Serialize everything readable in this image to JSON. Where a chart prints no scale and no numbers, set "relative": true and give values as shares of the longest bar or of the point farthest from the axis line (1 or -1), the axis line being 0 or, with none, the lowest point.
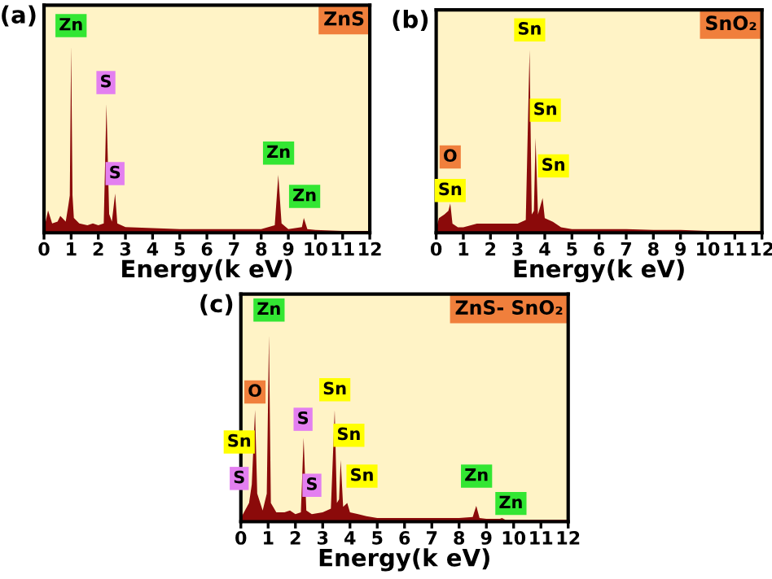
{
  "chart_data": [
    {
      "type": "area",
      "title": "(a)",
      "xlabel": "Energy(k eV)",
      "relative": true,
      "tick_labels": "x",
      "xlim": [
        0,
        12
      ],
      "xticks": [
        0,
        1,
        2,
        3,
        4,
        5,
        6,
        7,
        8,
        9,
        10,
        11,
        12
      ],
      "grid": false,
      "legend": false,
      "x": [
        0,
        0.15,
        0.3,
        0.5,
        0.6,
        0.8,
        0.9,
        0.95,
        1.0,
        1.05,
        1.1,
        1.3,
        1.6,
        1.8,
        2.0,
        2.2,
        2.3,
        2.4,
        2.5,
        2.62,
        2.7,
        3,
        4,
        5,
        6,
        7,
        8,
        8.5,
        8.63,
        8.75,
        9,
        9.5,
        9.57,
        9.7,
        10,
        11,
        12
      ],
      "series": [
        {
          "color": "#8b0a0a",
          "values": [
            0.02,
            0.12,
            0.05,
            0.06,
            0.09,
            0.06,
            0.15,
            0.2,
            1.0,
            0.2,
            0.08,
            0.05,
            0.04,
            0.05,
            0.04,
            0.05,
            0.69,
            0.1,
            0.06,
            0.21,
            0.05,
            0.03,
            0.025,
            0.02,
            0.02,
            0.02,
            0.02,
            0.04,
            0.31,
            0.05,
            0.02,
            0.03,
            0.08,
            0.02,
            0.015,
            0.01,
            0.01
          ]
        }
      ],
      "annotations": [
        "ZnS",
        "Zn",
        "S",
        "S",
        "Zn",
        "Zn"
      ]
    },
    {
      "type": "area",
      "title": "(b)",
      "xlabel": "Energy(k eV)",
      "relative": true,
      "tick_labels": "x",
      "xlim": [
        0,
        12
      ],
      "xticks": [
        0,
        1,
        2,
        3,
        4,
        5,
        6,
        7,
        8,
        9,
        10,
        11,
        12
      ],
      "grid": false,
      "legend": false,
      "x": [
        0,
        0.1,
        0.3,
        0.45,
        0.52,
        0.6,
        0.8,
        1.0,
        1.5,
        2.0,
        2.5,
        3.0,
        3.3,
        3.44,
        3.52,
        3.6,
        3.66,
        3.75,
        3.92,
        4.0,
        4.3,
        4.6,
        5,
        6,
        7,
        8,
        9,
        10,
        11,
        12
      ],
      "series": [
        {
          "color": "#8b0a0a",
          "values": [
            0.02,
            0.08,
            0.1,
            0.12,
            0.16,
            0.05,
            0.03,
            0.03,
            0.05,
            0.05,
            0.05,
            0.05,
            0.07,
            1.0,
            0.1,
            0.12,
            0.52,
            0.1,
            0.19,
            0.08,
            0.06,
            0.03,
            0.02,
            0.02,
            0.02,
            0.015,
            0.015,
            0.01,
            0.01,
            0.01
          ]
        }
      ],
      "annotations": [
        "SnO₂",
        "Sn",
        "Sn",
        "Sn",
        "O",
        "Sn"
      ]
    },
    {
      "type": "area",
      "title": "(c)",
      "xlabel": "Energy(k eV)",
      "relative": true,
      "tick_labels": "x",
      "xlim": [
        0,
        12
      ],
      "xticks": [
        0,
        1,
        2,
        3,
        4,
        5,
        6,
        7,
        8,
        9,
        10,
        11,
        12
      ],
      "grid": false,
      "legend": false,
      "x": [
        0,
        0.15,
        0.3,
        0.4,
        0.52,
        0.6,
        0.8,
        0.95,
        1.03,
        1.1,
        1.3,
        1.6,
        1.8,
        2.0,
        2.2,
        2.3,
        2.4,
        2.6,
        3.0,
        3.3,
        3.44,
        3.52,
        3.6,
        3.66,
        3.75,
        3.9,
        4.0,
        4.3,
        4.6,
        5,
        6,
        7,
        8,
        8.5,
        8.63,
        8.75,
        9,
        9.5,
        9.57,
        9.7,
        10,
        11,
        12
      ],
      "series": [
        {
          "color": "#8b0a0a",
          "values": [
            0.02,
            0.06,
            0.1,
            0.2,
            0.6,
            0.15,
            0.06,
            0.15,
            1.0,
            0.1,
            0.05,
            0.05,
            0.06,
            0.04,
            0.05,
            0.45,
            0.06,
            0.04,
            0.05,
            0.07,
            0.6,
            0.1,
            0.12,
            0.33,
            0.08,
            0.1,
            0.05,
            0.04,
            0.03,
            0.02,
            0.02,
            0.02,
            0.02,
            0.025,
            0.085,
            0.02,
            0.015,
            0.015,
            0.02,
            0.01,
            0.01,
            0.01,
            0.01
          ]
        }
      ],
      "annotations": [
        "ZnS- SnO₂",
        "Zn",
        "O",
        "Sn",
        "S",
        "S",
        "S",
        "Sn",
        "Sn",
        "Sn",
        "Zn",
        "Zn"
      ]
    }
  ]
}
